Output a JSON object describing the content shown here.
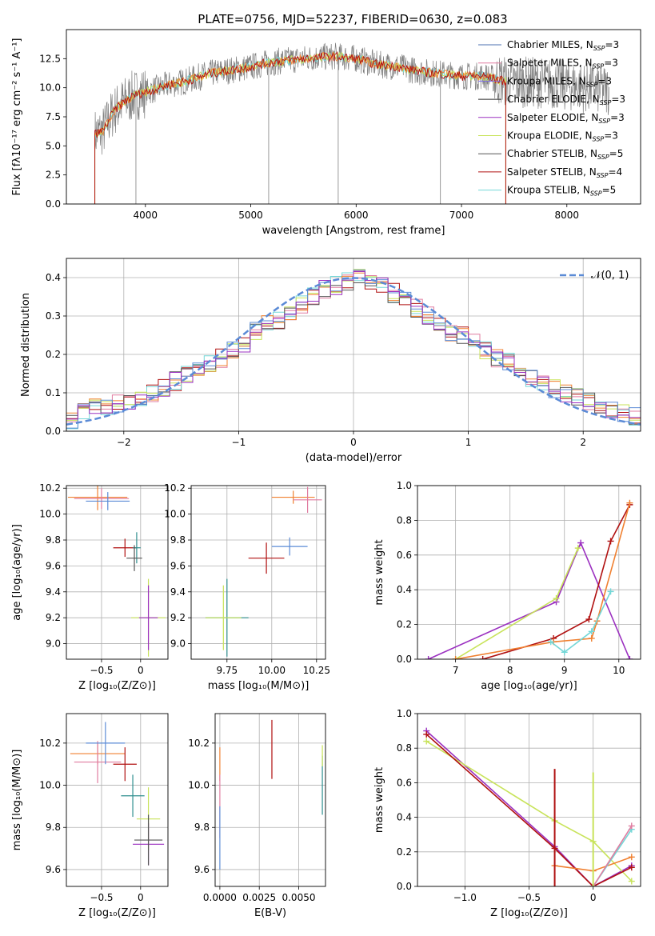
{
  "figure": {
    "title": "PLATE=0756, MJD=52237, FIBERID=0630, z=0.083"
  },
  "colors": {
    "chabrier_miles": "#4c72b0",
    "salpeter_miles": "#e07ca0",
    "kroupa_miles": "#7b68ee",
    "chabrier_elodie": "#2b2b2b",
    "salpeter_elodie": "#9b30c0",
    "kroupa_elodie": "#c8e35a",
    "chabrier_stelib": "#555555",
    "salpeter_stelib": "#b01010",
    "kroupa_stelib": "#73d7d7",
    "data_grey": "#808080",
    "normal_curve": "#5b8bd6",
    "orange": "#f08030",
    "blue": "#5b8bd6",
    "teal": "#2f8f8f"
  },
  "chart_data": [
    {
      "type": "line",
      "name": "spectrum",
      "title": "PLATE=0756, MJD=52237, FIBERID=0630, z=0.083",
      "xlabel": "wavelength [Angstrom, rest frame]",
      "ylabel": "Flux [fλ10⁻¹⁷ erg cm⁻² s⁻¹ A⁻¹]",
      "xlim": [
        3250,
        8700
      ],
      "ylim": [
        0,
        15
      ],
      "xticks": [
        4000,
        5000,
        6000,
        7000,
        8000
      ],
      "yticks": [
        0.0,
        2.5,
        5.0,
        7.5,
        10.0,
        12.5
      ],
      "grid": false,
      "legend_position": "top-right",
      "legend": [
        "Chabrier MILES, N_SSP=3",
        "Salpeter MILES, N_SSP=3",
        "Kroupa MILES, N_SSP=3",
        "Chabrier ELODIE, N_SSP=3",
        "Salpeter ELODIE, N_SSP=3",
        "Kroupa ELODIE, N_SSP=3",
        "Chabrier STELIB, N_SSP=5",
        "Salpeter STELIB, N_SSP=4",
        "Kroupa STELIB, N_SSP=5"
      ],
      "continuum": {
        "x": [
          3520,
          3600,
          3700,
          3800,
          3900,
          4000,
          4200,
          4400,
          4600,
          4800,
          5000,
          5200,
          5400,
          5600,
          5800,
          6000,
          6200,
          6400,
          6600,
          6800,
          7000,
          7200,
          7400,
          7600,
          7800,
          8000,
          8200,
          8400
        ],
        "y": [
          6.0,
          6.3,
          8.0,
          8.8,
          9.4,
          9.6,
          10.2,
          10.6,
          11.2,
          11.5,
          11.8,
          12.2,
          12.4,
          12.6,
          12.7,
          12.5,
          12.0,
          11.8,
          11.4,
          11.2,
          11.0,
          11.0,
          10.6,
          10.5,
          10.4,
          10.2,
          10.0,
          9.8
        ]
      }
    },
    {
      "type": "bar",
      "name": "residual-histogram",
      "xlabel": "(data-model)/error",
      "ylabel": "Normed distribution",
      "xlim": [
        -2.5,
        2.5
      ],
      "ylim": [
        0.0,
        0.45
      ],
      "xticks": [
        -2,
        -1,
        0,
        1,
        2
      ],
      "yticks": [
        0.0,
        0.1,
        0.2,
        0.3,
        0.4
      ],
      "grid": true,
      "legend_position": "top-right",
      "legend": [
        "𝒩(0, 1)"
      ],
      "bin_width": 0.1,
      "bin_start": -2.5,
      "step_values": [
        0.03,
        0.05,
        0.06,
        0.06,
        0.07,
        0.08,
        0.09,
        0.1,
        0.11,
        0.13,
        0.15,
        0.16,
        0.18,
        0.19,
        0.21,
        0.23,
        0.26,
        0.28,
        0.29,
        0.31,
        0.33,
        0.35,
        0.37,
        0.38,
        0.39,
        0.4,
        0.39,
        0.38,
        0.36,
        0.34,
        0.32,
        0.3,
        0.28,
        0.26,
        0.25,
        0.23,
        0.21,
        0.19,
        0.18,
        0.16,
        0.14,
        0.12,
        0.11,
        0.1,
        0.09,
        0.08,
        0.07,
        0.06,
        0.05,
        0.04
      ]
    },
    {
      "type": "scatter",
      "name": "age-vs-metallicity",
      "xlabel": "Z [log₁₀(Z/Z⊙)]",
      "ylabel": "age  [log₁₀(age/yr)]",
      "xlim": [
        -0.95,
        0.35
      ],
      "ylim": [
        8.88,
        10.22
      ],
      "xticks": [
        -0.5,
        0.0
      ],
      "yticks": [
        9.0,
        9.2,
        9.4,
        9.6,
        9.8,
        10.0,
        10.2
      ],
      "grid": true,
      "points": [
        {
          "x": -0.55,
          "y": 10.13,
          "xerr": 0.38,
          "yerr": 0.1
        },
        {
          "x": -0.5,
          "y": 10.12,
          "xerr": 0.35,
          "yerr": 0.08
        },
        {
          "x": -0.42,
          "y": 10.1,
          "xerr": 0.28,
          "yerr": 0.07
        },
        {
          "x": -0.2,
          "y": 9.74,
          "xerr": 0.15,
          "yerr": 0.07
        },
        {
          "x": -0.05,
          "y": 9.74,
          "xerr": 0.05,
          "yerr": 0.12
        },
        {
          "x": 0.1,
          "y": 9.2,
          "xerr": 0.22,
          "yerr": 0.3
        },
        {
          "x": 0.1,
          "y": 9.2,
          "xerr": 0.12,
          "yerr": 0.25
        },
        {
          "x": -0.08,
          "y": 9.66,
          "xerr": 0.1,
          "yerr": 0.1
        }
      ]
    },
    {
      "type": "scatter",
      "name": "age-vs-mass",
      "xlabel": "mass [log₁₀(M/M⊙)]",
      "ylabel": "",
      "xlim": [
        9.55,
        10.3
      ],
      "ylim": [
        8.88,
        10.22
      ],
      "xticks": [
        9.75,
        10.0,
        10.25
      ],
      "xticklabels": [
        "9.75",
        "10.00",
        "10.25"
      ],
      "yticks": [
        9.0,
        9.2,
        9.4,
        9.6,
        9.8,
        10.0,
        10.2
      ],
      "grid": true,
      "points": [
        {
          "x": 10.12,
          "y": 10.13,
          "xerr": 0.12,
          "yerr": 0.05
        },
        {
          "x": 10.2,
          "y": 10.11,
          "xerr": 0.08,
          "yerr": 0.1
        },
        {
          "x": 10.1,
          "y": 9.75,
          "xerr": 0.1,
          "yerr": 0.07
        },
        {
          "x": 9.97,
          "y": 9.66,
          "xerr": 0.1,
          "yerr": 0.12
        },
        {
          "x": 9.75,
          "y": 9.2,
          "xerr": 0.12,
          "yerr": 0.3
        },
        {
          "x": 9.73,
          "y": 9.2,
          "xerr": 0.1,
          "yerr": 0.25
        }
      ]
    },
    {
      "type": "line",
      "name": "mass-weight-vs-age",
      "xlabel": "age  [log₁₀(age/yr)]",
      "ylabel": "mass weight",
      "xlim": [
        6.3,
        10.4
      ],
      "ylim": [
        0.0,
        1.0
      ],
      "xticks": [
        7,
        8,
        9,
        10
      ],
      "yticks": [
        0.0,
        0.2,
        0.4,
        0.6,
        0.8,
        1.0
      ],
      "grid": true,
      "series": [
        {
          "x": [
            6.5,
            8.85,
            9.3,
            10.2
          ],
          "y": [
            0.0,
            0.33,
            0.67,
            0.0
          ]
        },
        {
          "x": [
            7.0,
            8.85,
            9.25
          ],
          "y": [
            0.0,
            0.35,
            0.64
          ]
        },
        {
          "x": [
            7.5,
            8.8,
            9.45,
            9.85,
            10.2
          ],
          "y": [
            0.0,
            0.12,
            0.23,
            0.68,
            0.89
          ]
        },
        {
          "x": [
            7.0,
            8.8,
            9.5,
            9.6,
            10.2
          ],
          "y": [
            0.0,
            0.1,
            0.12,
            0.22,
            0.9
          ]
        },
        {
          "x": [
            8.75,
            9.0,
            9.5,
            9.85
          ],
          "y": [
            0.1,
            0.04,
            0.16,
            0.39
          ]
        }
      ]
    },
    {
      "type": "scatter",
      "name": "mass-vs-metallicity",
      "xlabel": "Z [log₁₀(Z/Z⊙)]",
      "ylabel": "mass [log₁₀(M/M⊙)]",
      "xlim": [
        -0.95,
        0.35
      ],
      "ylim": [
        9.52,
        10.34
      ],
      "xticks": [
        -0.5,
        0.0
      ],
      "yticks": [
        9.6,
        9.8,
        10.0,
        10.2
      ],
      "grid": true,
      "points": [
        {
          "x": -0.55,
          "y": 10.15,
          "xerr": 0.35,
          "yerr": 0.05
        },
        {
          "x": -0.55,
          "y": 10.11,
          "xerr": 0.3,
          "yerr": 0.1
        },
        {
          "x": -0.45,
          "y": 10.2,
          "xerr": 0.25,
          "yerr": 0.1
        },
        {
          "x": -0.2,
          "y": 10.1,
          "xerr": 0.15,
          "yerr": 0.08
        },
        {
          "x": -0.1,
          "y": 9.95,
          "xerr": 0.15,
          "yerr": 0.1
        },
        {
          "x": 0.1,
          "y": 9.84,
          "xerr": 0.15,
          "yerr": 0.15
        },
        {
          "x": 0.1,
          "y": 9.72,
          "xerr": 0.2,
          "yerr": 0.1
        },
        {
          "x": 0.1,
          "y": 9.74,
          "xerr": 0.18,
          "yerr": 0.12
        }
      ]
    },
    {
      "type": "scatter",
      "name": "mass-vs-extinction",
      "xlabel": "E(B-V)",
      "ylabel": "",
      "xlim": [
        -0.0003,
        0.0067
      ],
      "ylim": [
        9.52,
        10.34
      ],
      "xticks": [
        0.0,
        0.0025,
        0.005
      ],
      "xticklabels": [
        "0.0000",
        "0.0025",
        "0.0050"
      ],
      "yticks": [
        9.6,
        9.8,
        10.0,
        10.2
      ],
      "grid": true,
      "points": [
        {
          "x": 0.0,
          "y": 10.1,
          "xerr": 0,
          "yerr": 0.08
        },
        {
          "x": 0.0,
          "y": 9.9,
          "xerr": 0,
          "yerr": 0.15
        },
        {
          "x": 0.0,
          "y": 9.75,
          "xerr": 0,
          "yerr": 0.15
        },
        {
          "x": 0.0033,
          "y": 10.17,
          "xerr": 0,
          "yerr": 0.14
        },
        {
          "x": 0.0065,
          "y": 10.0,
          "xerr": 0,
          "yerr": 0.14
        },
        {
          "x": 0.0065,
          "y": 10.14,
          "xerr": 0,
          "yerr": 0.05
        }
      ]
    },
    {
      "type": "line",
      "name": "mass-weight-vs-metallicity",
      "xlabel": "Z [log₁₀(Z/Z⊙)]",
      "ylabel": "mass weight",
      "xlim": [
        -1.37,
        0.37
      ],
      "ylim": [
        0.0,
        1.0
      ],
      "xticks": [
        -1.0,
        -0.5,
        0.0
      ],
      "yticks": [
        0.0,
        0.2,
        0.4,
        0.6,
        0.8,
        1.0
      ],
      "grid": true,
      "series": [
        {
          "x": [
            -1.3,
            -0.3,
            0.0,
            0.3
          ],
          "y": [
            0.9,
            0.23,
            0.0,
            0.12
          ]
        },
        {
          "x": [
            -1.3,
            -0.3,
            0.0,
            0.3
          ],
          "y": [
            0.84,
            0.38,
            0.26,
            0.03
          ]
        },
        {
          "x": [
            -1.3,
            -0.3,
            0.0,
            0.3
          ],
          "y": [
            0.88,
            0.22,
            0.0,
            0.11
          ]
        },
        {
          "x": [
            -0.3,
            0.0,
            0.3
          ],
          "y": [
            0.12,
            0.09,
            0.17
          ]
        },
        {
          "x": [
            0.0,
            0.3
          ],
          "y": [
            0.0,
            0.33
          ]
        },
        {
          "x": [
            0.0,
            0.3
          ],
          "y": [
            0.0,
            0.35
          ]
        }
      ]
    }
  ]
}
